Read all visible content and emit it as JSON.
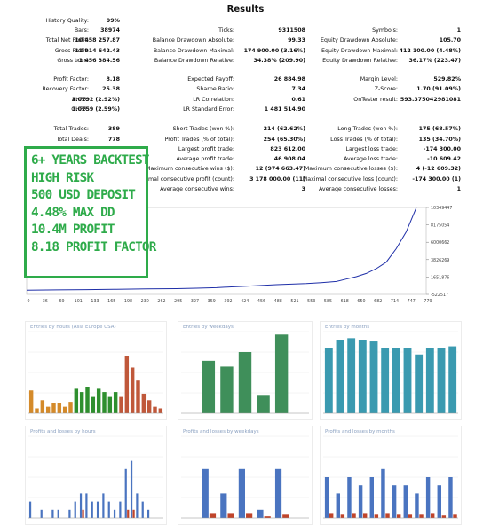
{
  "title": "Results",
  "rows": [
    [
      {
        "label": "History Quality:",
        "value": "99%"
      }
    ],
    [
      {
        "label": "Bars:",
        "value": "38974"
      },
      {
        "label": "Ticks:",
        "value": "9311508"
      },
      {
        "label": "Symbols:",
        "value": "1"
      }
    ],
    [
      {
        "label": "Total Net Profit:",
        "value": "10 458 257.87"
      },
      {
        "label": "Balance Drawdown Absolute:",
        "value": "99.33"
      },
      {
        "label": "Equity Drawdown Absolute:",
        "value": "105.70"
      }
    ],
    [
      {
        "label": "Gross Profit:",
        "value": "11 914 642.43"
      },
      {
        "label": "Balance Drawdown Maximal:",
        "value": "174 900.00 (3.16%)"
      },
      {
        "label": "Equity Drawdown Maximal:",
        "value": "412 100.00 (4.48%)"
      }
    ],
    [
      {
        "label": "Gross Loss:",
        "value": "-1 456 384.56"
      },
      {
        "label": "Balance Drawdown Relative:",
        "value": "34.38% (209.90)"
      },
      {
        "label": "Equity Drawdown Relative:",
        "value": "36.17% (223.47)"
      }
    ],
    [],
    [
      {
        "label": "Profit Factor:",
        "value": "8.18"
      },
      {
        "label": "Expected Payoff:",
        "value": "26 884.98"
      },
      {
        "label": "Margin Level:",
        "value": "529.82%"
      }
    ],
    [
      {
        "label": "Recovery Factor:",
        "value": "25.38"
      },
      {
        "label": "Sharpe Ratio:",
        "value": "7.34"
      },
      {
        "label": "Z-Score:",
        "value": "1.70 (91.09%)"
      }
    ],
    [
      {
        "label": "AHPR:",
        "value": "1.0292 (2.92%)"
      },
      {
        "label": "LR Correlation:",
        "value": "0.61"
      },
      {
        "label": "OnTester result:",
        "value": "593.375042981081"
      }
    ],
    [
      {
        "label": "GHPR:",
        "value": "1.0259 (2.59%)"
      },
      {
        "label": "LR Standard Error:",
        "value": "1 481 514.90"
      }
    ],
    [],
    [
      {
        "label": "Total Trades:",
        "value": "389"
      },
      {
        "label": "Short Trades (won %):",
        "value": "214 (62.62%)"
      },
      {
        "label": "Long Trades (won %):",
        "value": "175 (68.57%)"
      }
    ],
    [
      {
        "label": "Total Deals:",
        "value": "778"
      },
      {
        "label": "Profit Trades (% of total):",
        "value": "254 (65.30%)"
      },
      {
        "label": "Loss Trades (% of total):",
        "value": "135 (34.70%)"
      }
    ],
    [
      null,
      {
        "label": "Largest profit trade:",
        "value": "823 612.00"
      },
      {
        "label": "Largest loss trade:",
        "value": "-174 300.00"
      }
    ],
    [
      null,
      {
        "label": "Average profit trade:",
        "value": "46 908.04"
      },
      {
        "label": "Average loss trade:",
        "value": "-10 609.42"
      }
    ],
    [
      null,
      {
        "label": "Maximum consecutive wins ($):",
        "value": "12 (974 663.47)"
      },
      {
        "label": "Maximum consecutive losses ($):",
        "value": "4 (-12 609.32)"
      }
    ],
    [
      null,
      {
        "label": "Maximal consecutive profit (count):",
        "value": "3 178 000.00 (11)"
      },
      {
        "label": "Maximal consecutive loss (count):",
        "value": "-174 300.00 (1)"
      }
    ],
    [
      null,
      {
        "label": "Average consecutive wins:",
        "value": "3"
      },
      {
        "label": "Average consecutive losses:",
        "value": "1"
      }
    ]
  ],
  "overlay": [
    "6+ YEARS BACKTEST",
    "HIGH RISK",
    "500 USD DEPOSIT",
    "4.48% MAX DD",
    "10.4M PROFIT",
    "8.18 PROFIT FACTOR"
  ],
  "colors": {
    "overlay": "#2eab4a",
    "line": "#1f2fa8",
    "bar_blue": "#4a74c0",
    "bar_red": "#c0442a"
  },
  "chart_data": [
    {
      "type": "line",
      "name": "balance",
      "x_ticks": [
        "0",
        "36",
        "69",
        "101",
        "133",
        "165",
        "198",
        "230",
        "262",
        "295",
        "327",
        "359",
        "392",
        "424",
        "456",
        "488",
        "521",
        "553",
        "585",
        "618",
        "650",
        "682",
        "714",
        "747",
        "779"
      ],
      "y_ticks": [
        "10349447",
        "8175054",
        "6000662",
        "3826269",
        "1651876",
        "-522517"
      ],
      "x": [
        0,
        60,
        120,
        180,
        240,
        300,
        340,
        380,
        410,
        440,
        470,
        500,
        530,
        560,
        590,
        620,
        640,
        660,
        680,
        700,
        720,
        740,
        760,
        780
      ],
      "y": [
        10000,
        40000,
        80000,
        120000,
        160000,
        200000,
        250000,
        320000,
        420000,
        500000,
        600000,
        700000,
        760000,
        830000,
        950000,
        1100000,
        1400000,
        1700000,
        2100000,
        2700000,
        3500000,
        5200000,
        7300000,
        10300000
      ]
    },
    {
      "type": "bar",
      "title": "Entries by hours (Asia Europe USA)",
      "colors": [
        "#d48a2a",
        "#d48a2a",
        "#d48a2a",
        "#d48a2a",
        "#d48a2a",
        "#d48a2a",
        "#d48a2a",
        "#d48a2a",
        "#2e8f2e",
        "#2e8f2e",
        "#2e8f2e",
        "#2e8f2e",
        "#2e8f2e",
        "#2e8f2e",
        "#2e8f2e",
        "#2e8f2e",
        "#c0583a",
        "#c0583a",
        "#c0583a",
        "#c0583a",
        "#c0583a",
        "#c0583a",
        "#c0583a",
        "#c0583a"
      ],
      "values": [
        14,
        3,
        8,
        4,
        6,
        6,
        4,
        7,
        15,
        13,
        16,
        10,
        15,
        13,
        10,
        13,
        10,
        35,
        28,
        20,
        12,
        8,
        4,
        3
      ],
      "ylim": [
        0,
        50
      ]
    },
    {
      "type": "bar",
      "title": "Entries by weekdays",
      "colors": [
        "#3f8f5a"
      ],
      "values": [
        0,
        90,
        80,
        105,
        30,
        135,
        0
      ],
      "ylim": [
        0,
        140
      ]
    },
    {
      "type": "bar",
      "title": "Entries by months",
      "colors": [
        "#3a9ab0"
      ],
      "values": [
        40,
        45,
        46,
        45,
        44,
        40,
        40,
        40,
        36,
        40,
        40,
        41
      ],
      "ylim": [
        0,
        50
      ]
    },
    {
      "type": "bar",
      "title": "Profits and losses by hours",
      "series": [
        {
          "name": "profit",
          "values": [
            2,
            0,
            1,
            0,
            1,
            1,
            0,
            1,
            2,
            3,
            3,
            2,
            2,
            3,
            2,
            1,
            2,
            6,
            7,
            3,
            2,
            1,
            0,
            0
          ]
        },
        {
          "name": "loss",
          "values": [
            0,
            0,
            0,
            0,
            0,
            0,
            0,
            0,
            0,
            1,
            0,
            0,
            0,
            0,
            0,
            0,
            0,
            1,
            1,
            0,
            0,
            0,
            0,
            0
          ]
        }
      ],
      "ylim": [
        0,
        10
      ]
    },
    {
      "type": "bar",
      "title": "Profits and losses by weekdays",
      "series": [
        {
          "name": "profit",
          "values": [
            0,
            6,
            3,
            6,
            1,
            6,
            0
          ]
        },
        {
          "name": "loss",
          "values": [
            0,
            0.5,
            0.5,
            0.5,
            0.2,
            0.4,
            0
          ]
        }
      ],
      "ylim": [
        0,
        10
      ]
    },
    {
      "type": "bar",
      "title": "Profits and losses by months",
      "series": [
        {
          "name": "profit",
          "values": [
            5,
            3,
            5,
            4,
            5,
            6,
            4,
            4,
            3,
            5,
            4,
            5
          ]
        },
        {
          "name": "loss",
          "values": [
            0.5,
            0.4,
            0.5,
            0.5,
            0.4,
            0.5,
            0.4,
            0.4,
            0.4,
            0.5,
            0.3,
            0.4
          ]
        }
      ],
      "ylim": [
        0,
        10
      ]
    }
  ]
}
